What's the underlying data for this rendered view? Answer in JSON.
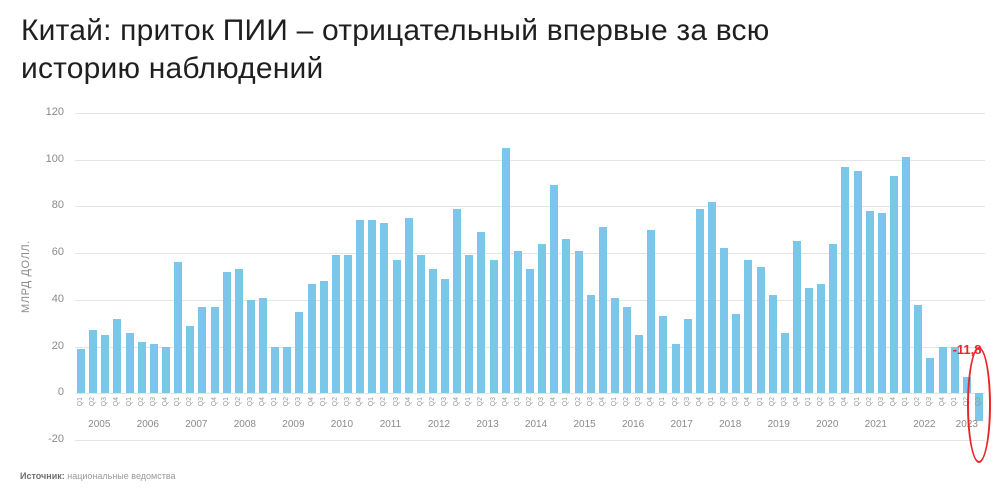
{
  "title": "Китай: приток ПИИ – отрицательный впервые за всю\nисторию наблюдений",
  "source": {
    "label": "Источник:",
    "text": "национальные ведомства"
  },
  "chart_data": {
    "type": "bar",
    "title": "Китай: приток ПИИ – отрицательный впервые за всю историю наблюдений",
    "ylabel": "МЛРД ДОЛЛ.",
    "xlabel": "",
    "ylim": [
      -20,
      120
    ],
    "yticks": [
      120,
      100,
      80,
      60,
      40,
      20,
      0,
      -20
    ],
    "grid": true,
    "legend": "none",
    "bar_color": "#7bc7ea",
    "accent_color": "#e8262a",
    "quarter_labels": [
      "Q1",
      "Q2",
      "Q3",
      "Q4"
    ],
    "annotation": {
      "text": "-11,8",
      "value": -11.8,
      "color": "#e8262a",
      "target": "2023 Q3",
      "highlight": "red-ellipse"
    },
    "series": [
      {
        "year": "2005",
        "values": [
          19,
          27,
          25,
          32
        ]
      },
      {
        "year": "2006",
        "values": [
          26,
          22,
          21,
          20
        ]
      },
      {
        "year": "2007",
        "values": [
          56,
          29,
          37,
          37
        ]
      },
      {
        "year": "2008",
        "values": [
          52,
          53,
          40,
          41
        ]
      },
      {
        "year": "2009",
        "values": [
          20,
          20,
          35,
          47
        ]
      },
      {
        "year": "2010",
        "values": [
          48,
          59,
          59,
          74
        ]
      },
      {
        "year": "2011",
        "values": [
          74,
          73,
          57,
          75
        ]
      },
      {
        "year": "2012",
        "values": [
          59,
          53,
          49,
          79
        ]
      },
      {
        "year": "2013",
        "values": [
          59,
          69,
          57,
          105
        ]
      },
      {
        "year": "2014",
        "values": [
          61,
          53,
          64,
          89
        ]
      },
      {
        "year": "2015",
        "values": [
          66,
          61,
          42,
          71
        ]
      },
      {
        "year": "2016",
        "values": [
          41,
          37,
          25,
          70
        ]
      },
      {
        "year": "2017",
        "values": [
          33,
          21,
          32,
          79
        ]
      },
      {
        "year": "2018",
        "values": [
          82,
          62,
          34,
          57
        ]
      },
      {
        "year": "2019",
        "values": [
          54,
          42,
          26,
          65
        ]
      },
      {
        "year": "2020",
        "values": [
          45,
          47,
          64,
          97
        ]
      },
      {
        "year": "2021",
        "values": [
          95,
          78,
          77,
          93
        ]
      },
      {
        "year": "2022",
        "values": [
          101,
          38,
          15,
          20
        ]
      },
      {
        "year": "2023",
        "values": [
          20,
          7,
          -11.8
        ]
      }
    ]
  }
}
